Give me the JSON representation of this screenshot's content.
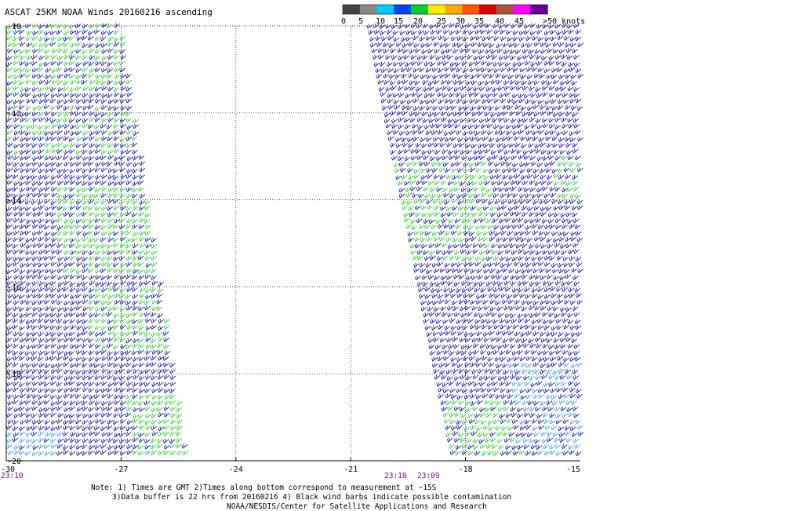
{
  "title": "ASCAT 25KM NOAA Winds 20160216 ascending",
  "colorbar": {
    "labels": [
      "0",
      "5",
      "10",
      "15",
      "20",
      "25",
      "30",
      "35",
      "40",
      "45",
      ">50 knots"
    ],
    "colors": [
      "#444444",
      "#888888",
      "#00ccff",
      "#0044ee",
      "#00cc33",
      "#ffee00",
      "#ffaa00",
      "#ff5500",
      "#dd0000",
      "#aa5533",
      "#ff00ff",
      "#660099"
    ]
  },
  "axes": {
    "lat_labels": [
      "-10",
      "-12",
      "-14",
      "-16",
      "-18",
      "-20"
    ],
    "lon_labels": [
      "-30",
      "-27",
      "-24",
      "-21",
      "-18",
      "-15"
    ],
    "lat_range": [
      -20,
      -10
    ],
    "lon_range": [
      -30,
      -15
    ]
  },
  "time_labels": [
    "23:10",
    "23:10",
    "23:09"
  ],
  "notes": [
    "Note: 1) Times are GMT 2)Times along bottom correspond to measurement at ~15S",
    "3)Data buffer is 22 hrs from 20160216 4) Black wind barbs indicate possible contamination",
    "NOAA/NESDIS/Center for Satellite Applications and Research"
  ],
  "colors": {
    "barb_blue": "#0000aa",
    "barb_green": "#22cc22",
    "barb_cyan": "#3399dd",
    "time_label": "#880088"
  }
}
